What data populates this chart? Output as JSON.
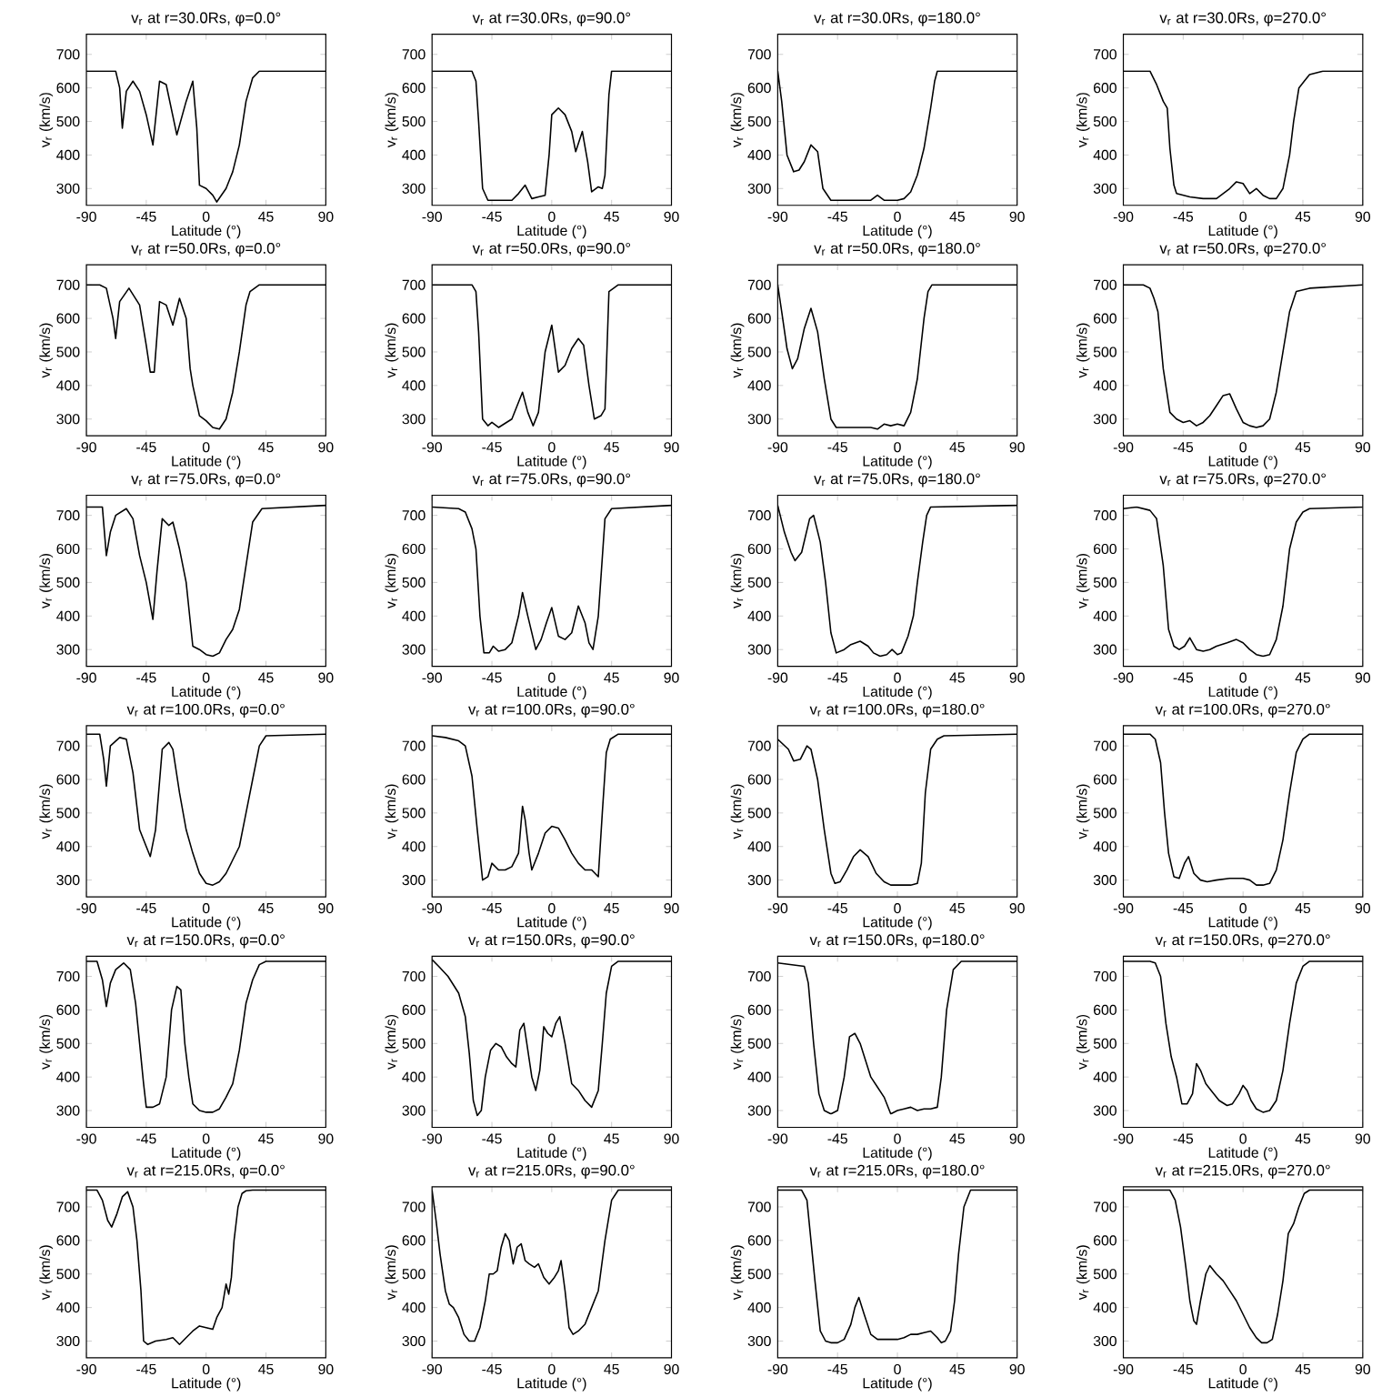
{
  "chart_data": [
    {
      "type": "line",
      "title": "v$_{r}$ at r=30.0Rs, φ=0.0°",
      "xlabel": "Latitude (°)",
      "ylabel": "v$_{r}$ (km/s)",
      "color": "#000000",
      "xlim": [
        -90,
        90
      ],
      "ylim": [
        250,
        760
      ],
      "xticks": [
        -90,
        -45,
        0,
        45,
        90
      ],
      "yticks": [
        300,
        400,
        500,
        600,
        700
      ],
      "x": [
        -90,
        -68,
        -65,
        -63,
        -60,
        -55,
        -50,
        -45,
        -40,
        -35,
        -30,
        -22,
        -15,
        -10,
        -7,
        -5,
        0,
        5,
        8,
        15,
        20,
        25,
        30,
        35,
        40,
        45,
        90
      ],
      "values": [
        650,
        650,
        600,
        480,
        590,
        620,
        590,
        520,
        430,
        620,
        610,
        460,
        560,
        620,
        480,
        310,
        300,
        280,
        260,
        300,
        350,
        430,
        560,
        630,
        650,
        650,
        650
      ]
    },
    {
      "type": "line",
      "title": "v$_{r}$ at r=30.0Rs, φ=90.0°",
      "xlabel": "Latitude (°)",
      "ylabel": "v$_{r}$ (km/s)",
      "color": "#000000",
      "xlim": [
        -90,
        90
      ],
      "ylim": [
        250,
        760
      ],
      "xticks": [
        -90,
        -45,
        0,
        45,
        90
      ],
      "yticks": [
        300,
        400,
        500,
        600,
        700
      ],
      "x": [
        -90,
        -60,
        -57,
        -55,
        -52,
        -48,
        -40,
        -30,
        -25,
        -20,
        -15,
        -10,
        -5,
        -2,
        0,
        5,
        10,
        15,
        18,
        23,
        27,
        30,
        35,
        38,
        40,
        43,
        45,
        90
      ],
      "values": [
        650,
        650,
        620,
        500,
        300,
        265,
        265,
        265,
        285,
        310,
        270,
        275,
        280,
        400,
        520,
        540,
        520,
        470,
        410,
        470,
        380,
        290,
        305,
        300,
        340,
        580,
        650,
        650
      ]
    },
    {
      "type": "line",
      "title": "v$_{r}$ at r=30.0Rs, φ=180.0°",
      "xlabel": "Latitude (°)",
      "ylabel": "v$_{r}$ (km/s)",
      "color": "#000000",
      "xlim": [
        -90,
        90
      ],
      "ylim": [
        250,
        760
      ],
      "xticks": [
        -90,
        -45,
        0,
        45,
        90
      ],
      "yticks": [
        300,
        400,
        500,
        600,
        700
      ],
      "x": [
        -90,
        -87,
        -83,
        -78,
        -74,
        -70,
        -65,
        -60,
        -56,
        -50,
        -45,
        -20,
        -15,
        -10,
        0,
        5,
        10,
        15,
        20,
        25,
        28,
        30,
        90
      ],
      "values": [
        650,
        560,
        400,
        350,
        355,
        380,
        430,
        410,
        300,
        265,
        265,
        265,
        280,
        265,
        265,
        270,
        290,
        340,
        420,
        540,
        620,
        650,
        650
      ]
    },
    {
      "type": "line",
      "title": "v$_{r}$ at r=30.0Rs, φ=270.0°",
      "xlabel": "Latitude (°)",
      "ylabel": "v$_{r}$ (km/s)",
      "color": "#000000",
      "xlim": [
        -90,
        90
      ],
      "ylim": [
        250,
        760
      ],
      "xticks": [
        -90,
        -45,
        0,
        45,
        90
      ],
      "yticks": [
        300,
        400,
        500,
        600,
        700
      ],
      "x": [
        -90,
        -70,
        -65,
        -60,
        -57,
        -55,
        -52,
        -50,
        -40,
        -30,
        -20,
        -10,
        -5,
        0,
        5,
        10,
        15,
        20,
        25,
        30,
        35,
        38,
        42,
        46,
        50,
        60,
        90
      ],
      "values": [
        650,
        650,
        610,
        560,
        540,
        420,
        310,
        285,
        275,
        270,
        270,
        300,
        320,
        315,
        285,
        300,
        280,
        270,
        270,
        300,
        400,
        500,
        600,
        620,
        640,
        650,
        650
      ]
    },
    {
      "type": "line",
      "title": "v$_{r}$ at r=50.0Rs, φ=0.0°",
      "xlabel": "Latitude (°)",
      "ylabel": "v$_{r}$ (km/s)",
      "color": "#000000",
      "xlim": [
        -90,
        90
      ],
      "ylim": [
        250,
        760
      ],
      "xticks": [
        -90,
        -45,
        0,
        45,
        90
      ],
      "yticks": [
        300,
        400,
        500,
        600,
        700
      ],
      "x": [
        -90,
        -80,
        -75,
        -70,
        -68,
        -65,
        -58,
        -50,
        -45,
        -42,
        -39,
        -35,
        -30,
        -25,
        -20,
        -15,
        -12,
        -10,
        -5,
        0,
        5,
        10,
        15,
        20,
        25,
        30,
        33,
        40,
        90
      ],
      "values": [
        700,
        700,
        690,
        600,
        540,
        650,
        690,
        640,
        520,
        440,
        440,
        650,
        640,
        580,
        660,
        600,
        450,
        400,
        310,
        295,
        275,
        270,
        300,
        380,
        500,
        640,
        680,
        700,
        700
      ]
    },
    {
      "type": "line",
      "title": "v$_{r}$ at r=50.0Rs, φ=90.0°",
      "xlabel": "Latitude (°)",
      "ylabel": "v$_{r}$ (km/s)",
      "color": "#000000",
      "xlim": [
        -90,
        90
      ],
      "ylim": [
        250,
        760
      ],
      "xticks": [
        -90,
        -45,
        0,
        45,
        90
      ],
      "yticks": [
        300,
        400,
        500,
        600,
        700
      ],
      "x": [
        -90,
        -60,
        -57,
        -55,
        -52,
        -48,
        -45,
        -40,
        -30,
        -22,
        -18,
        -14,
        -10,
        -5,
        0,
        5,
        10,
        15,
        20,
        24,
        28,
        32,
        37,
        40,
        43,
        50,
        90
      ],
      "values": [
        700,
        700,
        680,
        560,
        300,
        280,
        290,
        275,
        300,
        380,
        320,
        280,
        320,
        500,
        580,
        440,
        460,
        510,
        540,
        520,
        400,
        300,
        310,
        330,
        680,
        700,
        700
      ]
    },
    {
      "type": "line",
      "title": "v$_{r}$ at r=50.0Rs, φ=180.0°",
      "xlabel": "Latitude (°)",
      "ylabel": "v$_{r}$ (km/s)",
      "color": "#000000",
      "xlim": [
        -90,
        90
      ],
      "ylim": [
        250,
        760
      ],
      "xticks": [
        -90,
        -45,
        0,
        45,
        90
      ],
      "yticks": [
        300,
        400,
        500,
        600,
        700
      ],
      "x": [
        -90,
        -87,
        -83,
        -79,
        -75,
        -70,
        -65,
        -60,
        -55,
        -50,
        -46,
        -40,
        -20,
        -15,
        -10,
        -5,
        0,
        5,
        10,
        15,
        20,
        23,
        26,
        90
      ],
      "values": [
        700,
        620,
        510,
        450,
        480,
        570,
        630,
        560,
        420,
        300,
        275,
        275,
        275,
        270,
        285,
        280,
        285,
        280,
        320,
        420,
        600,
        680,
        700,
        700
      ]
    },
    {
      "type": "line",
      "title": "v$_{r}$ at r=50.0Rs, φ=270.0°",
      "xlabel": "Latitude (°)",
      "ylabel": "v$_{r}$ (km/s)",
      "color": "#000000",
      "xlim": [
        -90,
        90
      ],
      "ylim": [
        250,
        760
      ],
      "xticks": [
        -90,
        -45,
        0,
        45,
        90
      ],
      "yticks": [
        300,
        400,
        500,
        600,
        700
      ],
      "x": [
        -90,
        -75,
        -70,
        -67,
        -64,
        -60,
        -55,
        -50,
        -45,
        -40,
        -35,
        -30,
        -25,
        -20,
        -15,
        -10,
        -5,
        0,
        5,
        10,
        15,
        20,
        25,
        30,
        35,
        40,
        50,
        90
      ],
      "values": [
        700,
        700,
        690,
        660,
        620,
        450,
        320,
        300,
        290,
        295,
        280,
        290,
        310,
        340,
        370,
        375,
        330,
        290,
        280,
        275,
        280,
        300,
        380,
        500,
        620,
        680,
        690,
        700
      ]
    },
    {
      "type": "line",
      "title": "v$_{r}$ at r=75.0Rs, φ=0.0°",
      "xlabel": "Latitude (°)",
      "ylabel": "v$_{r}$ (km/s)",
      "color": "#000000",
      "xlim": [
        -90,
        90
      ],
      "ylim": [
        250,
        760
      ],
      "xticks": [
        -90,
        -45,
        0,
        45,
        90
      ],
      "yticks": [
        300,
        400,
        500,
        600,
        700
      ],
      "x": [
        -90,
        -78,
        -75,
        -72,
        -68,
        -60,
        -55,
        -50,
        -45,
        -40,
        -37,
        -33,
        -28,
        -25,
        -20,
        -15,
        -10,
        -5,
        0,
        5,
        10,
        15,
        20,
        25,
        30,
        35,
        42,
        90
      ],
      "values": [
        725,
        725,
        580,
        650,
        700,
        720,
        690,
        580,
        500,
        390,
        530,
        690,
        670,
        680,
        600,
        500,
        310,
        300,
        285,
        280,
        290,
        330,
        360,
        420,
        550,
        680,
        720,
        730
      ]
    },
    {
      "type": "line",
      "title": "v$_{r}$ at r=75.0Rs, φ=90.0°",
      "xlabel": "Latitude (°)",
      "ylabel": "v$_{r}$ (km/s)",
      "color": "#000000",
      "xlim": [
        -90,
        90
      ],
      "ylim": [
        250,
        760
      ],
      "xticks": [
        -90,
        -45,
        0,
        45,
        90
      ],
      "yticks": [
        300,
        400,
        500,
        600,
        700
      ],
      "x": [
        -90,
        -70,
        -65,
        -60,
        -57,
        -54,
        -51,
        -47,
        -44,
        -40,
        -35,
        -30,
        -25,
        -22,
        -18,
        -12,
        -8,
        -4,
        0,
        5,
        10,
        15,
        20,
        25,
        28,
        31,
        35,
        40,
        45,
        90
      ],
      "values": [
        725,
        720,
        710,
        660,
        600,
        400,
        290,
        290,
        310,
        295,
        300,
        320,
        400,
        470,
        400,
        300,
        330,
        380,
        425,
        340,
        330,
        350,
        430,
        380,
        320,
        300,
        400,
        690,
        720,
        730
      ]
    },
    {
      "type": "line",
      "title": "v$_{r}$ at r=75.0Rs, φ=180.0°",
      "xlabel": "Latitude (°)",
      "ylabel": "v$_{r}$ (km/s)",
      "color": "#000000",
      "xlim": [
        -90,
        90
      ],
      "ylim": [
        250,
        760
      ],
      "xticks": [
        -90,
        -45,
        0,
        45,
        90
      ],
      "yticks": [
        300,
        400,
        500,
        600,
        700
      ],
      "x": [
        -90,
        -85,
        -80,
        -77,
        -72,
        -66,
        -63,
        -58,
        -54,
        -50,
        -46,
        -40,
        -35,
        -28,
        -22,
        -18,
        -13,
        -8,
        -4,
        0,
        3,
        8,
        12,
        15,
        19,
        22,
        25,
        90
      ],
      "values": [
        730,
        650,
        590,
        565,
        590,
        690,
        700,
        620,
        500,
        350,
        290,
        300,
        315,
        325,
        310,
        290,
        280,
        285,
        300,
        285,
        290,
        340,
        400,
        500,
        620,
        700,
        725,
        730
      ]
    },
    {
      "type": "line",
      "title": "v$_{r}$ at r=75.0Rs, φ=270.0°",
      "xlabel": "Latitude (°)",
      "ylabel": "v$_{r}$ (km/s)",
      "color": "#000000",
      "xlim": [
        -90,
        90
      ],
      "ylim": [
        250,
        760
      ],
      "xticks": [
        -90,
        -45,
        0,
        45,
        90
      ],
      "yticks": [
        300,
        400,
        500,
        600,
        700
      ],
      "x": [
        -90,
        -80,
        -70,
        -65,
        -60,
        -56,
        -52,
        -48,
        -44,
        -40,
        -35,
        -30,
        -25,
        -20,
        -12,
        -5,
        0,
        5,
        10,
        15,
        20,
        25,
        30,
        35,
        40,
        45,
        50,
        90
      ],
      "values": [
        720,
        725,
        715,
        690,
        550,
        360,
        310,
        300,
        310,
        335,
        300,
        295,
        300,
        310,
        320,
        330,
        320,
        300,
        285,
        280,
        285,
        330,
        430,
        600,
        680,
        710,
        720,
        725
      ]
    },
    {
      "type": "line",
      "title": "v$_{r}$ at r=100.0Rs, φ=0.0°",
      "xlabel": "Latitude (°)",
      "ylabel": "v$_{r}$ (km/s)",
      "color": "#000000",
      "xlim": [
        -90,
        90
      ],
      "ylim": [
        250,
        760
      ],
      "xticks": [
        -90,
        -45,
        0,
        45,
        90
      ],
      "yticks": [
        300,
        400,
        500,
        600,
        700
      ],
      "x": [
        -90,
        -80,
        -77,
        -75,
        -72,
        -65,
        -60,
        -55,
        -50,
        -45,
        -42,
        -38,
        -33,
        -28,
        -25,
        -20,
        -15,
        -10,
        -5,
        0,
        5,
        10,
        15,
        20,
        25,
        30,
        35,
        40,
        45,
        90
      ],
      "values": [
        735,
        735,
        660,
        580,
        700,
        725,
        720,
        620,
        450,
        400,
        370,
        450,
        690,
        710,
        690,
        560,
        450,
        380,
        320,
        290,
        285,
        295,
        320,
        360,
        400,
        500,
        600,
        700,
        730,
        735
      ]
    },
    {
      "type": "line",
      "title": "v$_{r}$ at r=100.0Rs, φ=90.0°",
      "xlabel": "Latitude (°)",
      "ylabel": "v$_{r}$ (km/s)",
      "color": "#000000",
      "xlim": [
        -90,
        90
      ],
      "ylim": [
        250,
        760
      ],
      "xticks": [
        -90,
        -45,
        0,
        45,
        90
      ],
      "yticks": [
        300,
        400,
        500,
        600,
        700
      ],
      "x": [
        -90,
        -80,
        -70,
        -65,
        -60,
        -56,
        -52,
        -48,
        -45,
        -40,
        -35,
        -30,
        -25,
        -22,
        -20,
        -17,
        -15,
        -10,
        -5,
        0,
        5,
        10,
        15,
        20,
        25,
        30,
        35,
        38,
        41,
        44,
        50,
        90
      ],
      "values": [
        730,
        725,
        715,
        700,
        610,
        450,
        300,
        310,
        350,
        330,
        330,
        340,
        380,
        520,
        480,
        380,
        330,
        380,
        440,
        460,
        455,
        420,
        380,
        350,
        330,
        330,
        310,
        500,
        680,
        720,
        735,
        735
      ]
    },
    {
      "type": "line",
      "title": "v$_{r}$ at r=100.0Rs, φ=180.0°",
      "xlabel": "Latitude (°)",
      "ylabel": "v$_{r}$ (km/s)",
      "color": "#000000",
      "xlim": [
        -90,
        90
      ],
      "ylim": [
        250,
        760
      ],
      "xticks": [
        -90,
        -45,
        0,
        45,
        90
      ],
      "yticks": [
        300,
        400,
        500,
        600,
        700
      ],
      "x": [
        -90,
        -82,
        -78,
        -73,
        -68,
        -65,
        -60,
        -55,
        -50,
        -47,
        -43,
        -38,
        -33,
        -28,
        -22,
        -16,
        -10,
        -5,
        0,
        10,
        15,
        18,
        21,
        25,
        30,
        35,
        90
      ],
      "values": [
        720,
        690,
        655,
        660,
        700,
        690,
        600,
        450,
        320,
        290,
        295,
        330,
        370,
        390,
        370,
        320,
        295,
        285,
        285,
        285,
        290,
        350,
        560,
        690,
        720,
        730,
        735
      ]
    },
    {
      "type": "line",
      "title": "v$_{r}$ at r=100.0Rs, φ=270.0°",
      "xlabel": "Latitude (°)",
      "ylabel": "v$_{r}$ (km/s)",
      "color": "#000000",
      "xlim": [
        -90,
        90
      ],
      "ylim": [
        250,
        760
      ],
      "xticks": [
        -90,
        -45,
        0,
        45,
        90
      ],
      "yticks": [
        300,
        400,
        500,
        600,
        700
      ],
      "x": [
        -90,
        -70,
        -66,
        -62,
        -59,
        -56,
        -52,
        -48,
        -44,
        -41,
        -37,
        -32,
        -27,
        -20,
        -10,
        0,
        5,
        10,
        15,
        20,
        25,
        30,
        35,
        40,
        45,
        50,
        90
      ],
      "values": [
        735,
        735,
        720,
        650,
        500,
        380,
        310,
        305,
        350,
        370,
        320,
        300,
        295,
        300,
        305,
        305,
        300,
        285,
        285,
        290,
        330,
        420,
        560,
        680,
        720,
        735,
        735
      ]
    },
    {
      "type": "line",
      "title": "v$_{r}$ at r=150.0Rs, φ=0.0°",
      "xlabel": "Latitude (°)",
      "ylabel": "v$_{r}$ (km/s)",
      "color": "#000000",
      "xlim": [
        -90,
        90
      ],
      "ylim": [
        250,
        760
      ],
      "xticks": [
        -90,
        -45,
        0,
        45,
        90
      ],
      "yticks": [
        300,
        400,
        500,
        600,
        700
      ],
      "x": [
        -90,
        -82,
        -78,
        -75,
        -72,
        -68,
        -62,
        -57,
        -53,
        -50,
        -47,
        -45,
        -40,
        -35,
        -30,
        -26,
        -22,
        -19,
        -16,
        -13,
        -10,
        -5,
        0,
        5,
        10,
        15,
        20,
        25,
        30,
        35,
        40,
        45,
        90
      ],
      "values": [
        745,
        745,
        690,
        610,
        680,
        720,
        740,
        720,
        620,
        500,
        380,
        310,
        310,
        320,
        400,
        600,
        670,
        660,
        500,
        400,
        320,
        300,
        295,
        295,
        305,
        340,
        380,
        480,
        620,
        690,
        735,
        745,
        745
      ]
    },
    {
      "type": "line",
      "title": "v$_{r}$ at r=150.0Rs, φ=90.0°",
      "xlabel": "Latitude (°)",
      "ylabel": "v$_{r}$ (km/s)",
      "color": "#000000",
      "xlim": [
        -90,
        90
      ],
      "ylim": [
        250,
        760
      ],
      "xticks": [
        -90,
        -45,
        0,
        45,
        90
      ],
      "yticks": [
        300,
        400,
        500,
        600,
        700
      ],
      "x": [
        -90,
        -85,
        -78,
        -70,
        -65,
        -62,
        -59,
        -56,
        -53,
        -50,
        -46,
        -42,
        -38,
        -34,
        -30,
        -27,
        -24,
        -21,
        -18,
        -15,
        -12,
        -9,
        -6,
        -3,
        0,
        3,
        6,
        10,
        15,
        20,
        25,
        30,
        35,
        38,
        41,
        45,
        50,
        90
      ],
      "values": [
        750,
        730,
        700,
        650,
        580,
        470,
        330,
        285,
        300,
        400,
        480,
        500,
        490,
        460,
        440,
        430,
        540,
        560,
        480,
        400,
        360,
        420,
        550,
        530,
        520,
        560,
        580,
        500,
        380,
        360,
        330,
        310,
        360,
        500,
        650,
        730,
        745,
        745
      ]
    },
    {
      "type": "line",
      "title": "v$_{r}$ at r=150.0Rs, φ=180.0°",
      "xlabel": "Latitude (°)",
      "ylabel": "v$_{r}$ (km/s)",
      "color": "#000000",
      "xlim": [
        -90,
        90
      ],
      "ylim": [
        250,
        760
      ],
      "xticks": [
        -90,
        -45,
        0,
        45,
        90
      ],
      "yticks": [
        300,
        400,
        500,
        600,
        700
      ],
      "x": [
        -90,
        -80,
        -70,
        -67,
        -63,
        -59,
        -55,
        -50,
        -45,
        -40,
        -36,
        -32,
        -28,
        -24,
        -20,
        -15,
        -10,
        -5,
        0,
        5,
        10,
        15,
        20,
        25,
        30,
        33,
        37,
        42,
        48,
        90
      ],
      "values": [
        740,
        735,
        730,
        680,
        500,
        350,
        300,
        290,
        300,
        400,
        520,
        530,
        500,
        450,
        400,
        370,
        340,
        290,
        300,
        305,
        310,
        300,
        305,
        305,
        310,
        400,
        600,
        720,
        745,
        745
      ]
    },
    {
      "type": "line",
      "title": "v$_{r}$ at r=150.0Rs, φ=270.0°",
      "xlabel": "Latitude (°)",
      "ylabel": "v$_{r}$ (km/s)",
      "color": "#000000",
      "xlim": [
        -90,
        90
      ],
      "ylim": [
        250,
        760
      ],
      "xticks": [
        -90,
        -45,
        0,
        45,
        90
      ],
      "yticks": [
        300,
        400,
        500,
        600,
        700
      ],
      "x": [
        -90,
        -70,
        -66,
        -62,
        -58,
        -54,
        -50,
        -46,
        -42,
        -38,
        -35,
        -32,
        -28,
        -24,
        -18,
        -12,
        -8,
        -3,
        0,
        3,
        6,
        10,
        15,
        20,
        25,
        30,
        35,
        40,
        45,
        50,
        90
      ],
      "values": [
        745,
        745,
        740,
        700,
        560,
        460,
        400,
        320,
        320,
        350,
        440,
        420,
        380,
        360,
        330,
        315,
        320,
        350,
        375,
        360,
        330,
        305,
        295,
        300,
        330,
        420,
        560,
        680,
        730,
        745,
        745
      ]
    },
    {
      "type": "line",
      "title": "v$_{r}$ at r=215.0Rs, φ=0.0°",
      "xlabel": "Latitude (°)",
      "ylabel": "v$_{r}$ (km/s)",
      "color": "#000000",
      "xlim": [
        -90,
        90
      ],
      "ylim": [
        250,
        760
      ],
      "xticks": [
        -90,
        -45,
        0,
        45,
        90
      ],
      "yticks": [
        300,
        400,
        500,
        600,
        700
      ],
      "x": [
        -90,
        -82,
        -78,
        -74,
        -71,
        -67,
        -63,
        -59,
        -55,
        -52,
        -49,
        -47,
        -44,
        -38,
        -30,
        -25,
        -20,
        -15,
        -10,
        -5,
        0,
        5,
        8,
        12,
        15,
        17,
        19,
        21,
        24,
        27,
        30,
        35,
        90
      ],
      "values": [
        750,
        750,
        720,
        660,
        640,
        680,
        730,
        745,
        700,
        600,
        450,
        300,
        290,
        300,
        305,
        310,
        290,
        310,
        330,
        345,
        340,
        335,
        370,
        400,
        470,
        440,
        490,
        600,
        700,
        740,
        748,
        750,
        750
      ]
    },
    {
      "type": "line",
      "title": "v$_{r}$ at r=215.0Rs, φ=90.0°",
      "xlabel": "Latitude (°)",
      "ylabel": "v$_{r}$ (km/s)",
      "color": "#000000",
      "xlim": [
        -90,
        90
      ],
      "ylim": [
        250,
        760
      ],
      "xticks": [
        -90,
        -45,
        0,
        45,
        90
      ],
      "yticks": [
        300,
        400,
        500,
        600,
        700
      ],
      "x": [
        -90,
        -87,
        -84,
        -80,
        -77,
        -74,
        -70,
        -66,
        -62,
        -58,
        -54,
        -50,
        -47,
        -44,
        -41,
        -38,
        -35,
        -32,
        -29,
        -26,
        -23,
        -20,
        -17,
        -13,
        -10,
        -6,
        -2,
        2,
        5,
        7,
        10,
        13,
        16,
        20,
        25,
        30,
        35,
        40,
        45,
        50,
        90
      ],
      "values": [
        750,
        660,
        560,
        450,
        410,
        400,
        370,
        320,
        300,
        300,
        340,
        420,
        500,
        500,
        510,
        580,
        620,
        600,
        530,
        580,
        590,
        540,
        530,
        520,
        530,
        490,
        470,
        490,
        510,
        540,
        450,
        340,
        320,
        330,
        350,
        400,
        450,
        600,
        720,
        750,
        750
      ]
    },
    {
      "type": "line",
      "title": "v$_{r}$ at r=215.0Rs, φ=180.0°",
      "xlabel": "Latitude (°)",
      "ylabel": "v$_{r}$ (km/s)",
      "color": "#000000",
      "xlim": [
        -90,
        90
      ],
      "ylim": [
        250,
        760
      ],
      "xticks": [
        -90,
        -45,
        0,
        45,
        90
      ],
      "yticks": [
        300,
        400,
        500,
        600,
        700
      ],
      "x": [
        -90,
        -72,
        -68,
        -65,
        -62,
        -58,
        -54,
        -50,
        -45,
        -40,
        -35,
        -32,
        -29,
        -25,
        -20,
        -15,
        -10,
        -5,
        0,
        5,
        10,
        15,
        20,
        25,
        30,
        33,
        36,
        40,
        43,
        46,
        50,
        55,
        90
      ],
      "values": [
        750,
        750,
        720,
        600,
        480,
        330,
        300,
        295,
        295,
        305,
        350,
        400,
        430,
        380,
        320,
        305,
        305,
        305,
        305,
        310,
        320,
        320,
        325,
        330,
        310,
        295,
        300,
        330,
        420,
        560,
        700,
        750,
        750
      ]
    },
    {
      "type": "line",
      "title": "v$_{r}$ at r=215.0Rs, φ=270.0°",
      "xlabel": "Latitude (°)",
      "ylabel": "v$_{r}$ (km/s)",
      "color": "#000000",
      "xlim": [
        -90,
        90
      ],
      "ylim": [
        250,
        760
      ],
      "xticks": [
        -90,
        -45,
        0,
        45,
        90
      ],
      "yticks": [
        300,
        400,
        500,
        600,
        700
      ],
      "x": [
        -90,
        -55,
        -51,
        -47,
        -43,
        -40,
        -37,
        -35,
        -32,
        -28,
        -25,
        -20,
        -15,
        -10,
        -5,
        0,
        5,
        10,
        14,
        18,
        22,
        26,
        30,
        34,
        38,
        42,
        46,
        50,
        90
      ],
      "values": [
        750,
        750,
        720,
        640,
        520,
        420,
        360,
        350,
        420,
        500,
        525,
        500,
        480,
        450,
        420,
        380,
        340,
        310,
        295,
        295,
        305,
        380,
        480,
        620,
        650,
        700,
        740,
        750,
        750
      ]
    }
  ]
}
